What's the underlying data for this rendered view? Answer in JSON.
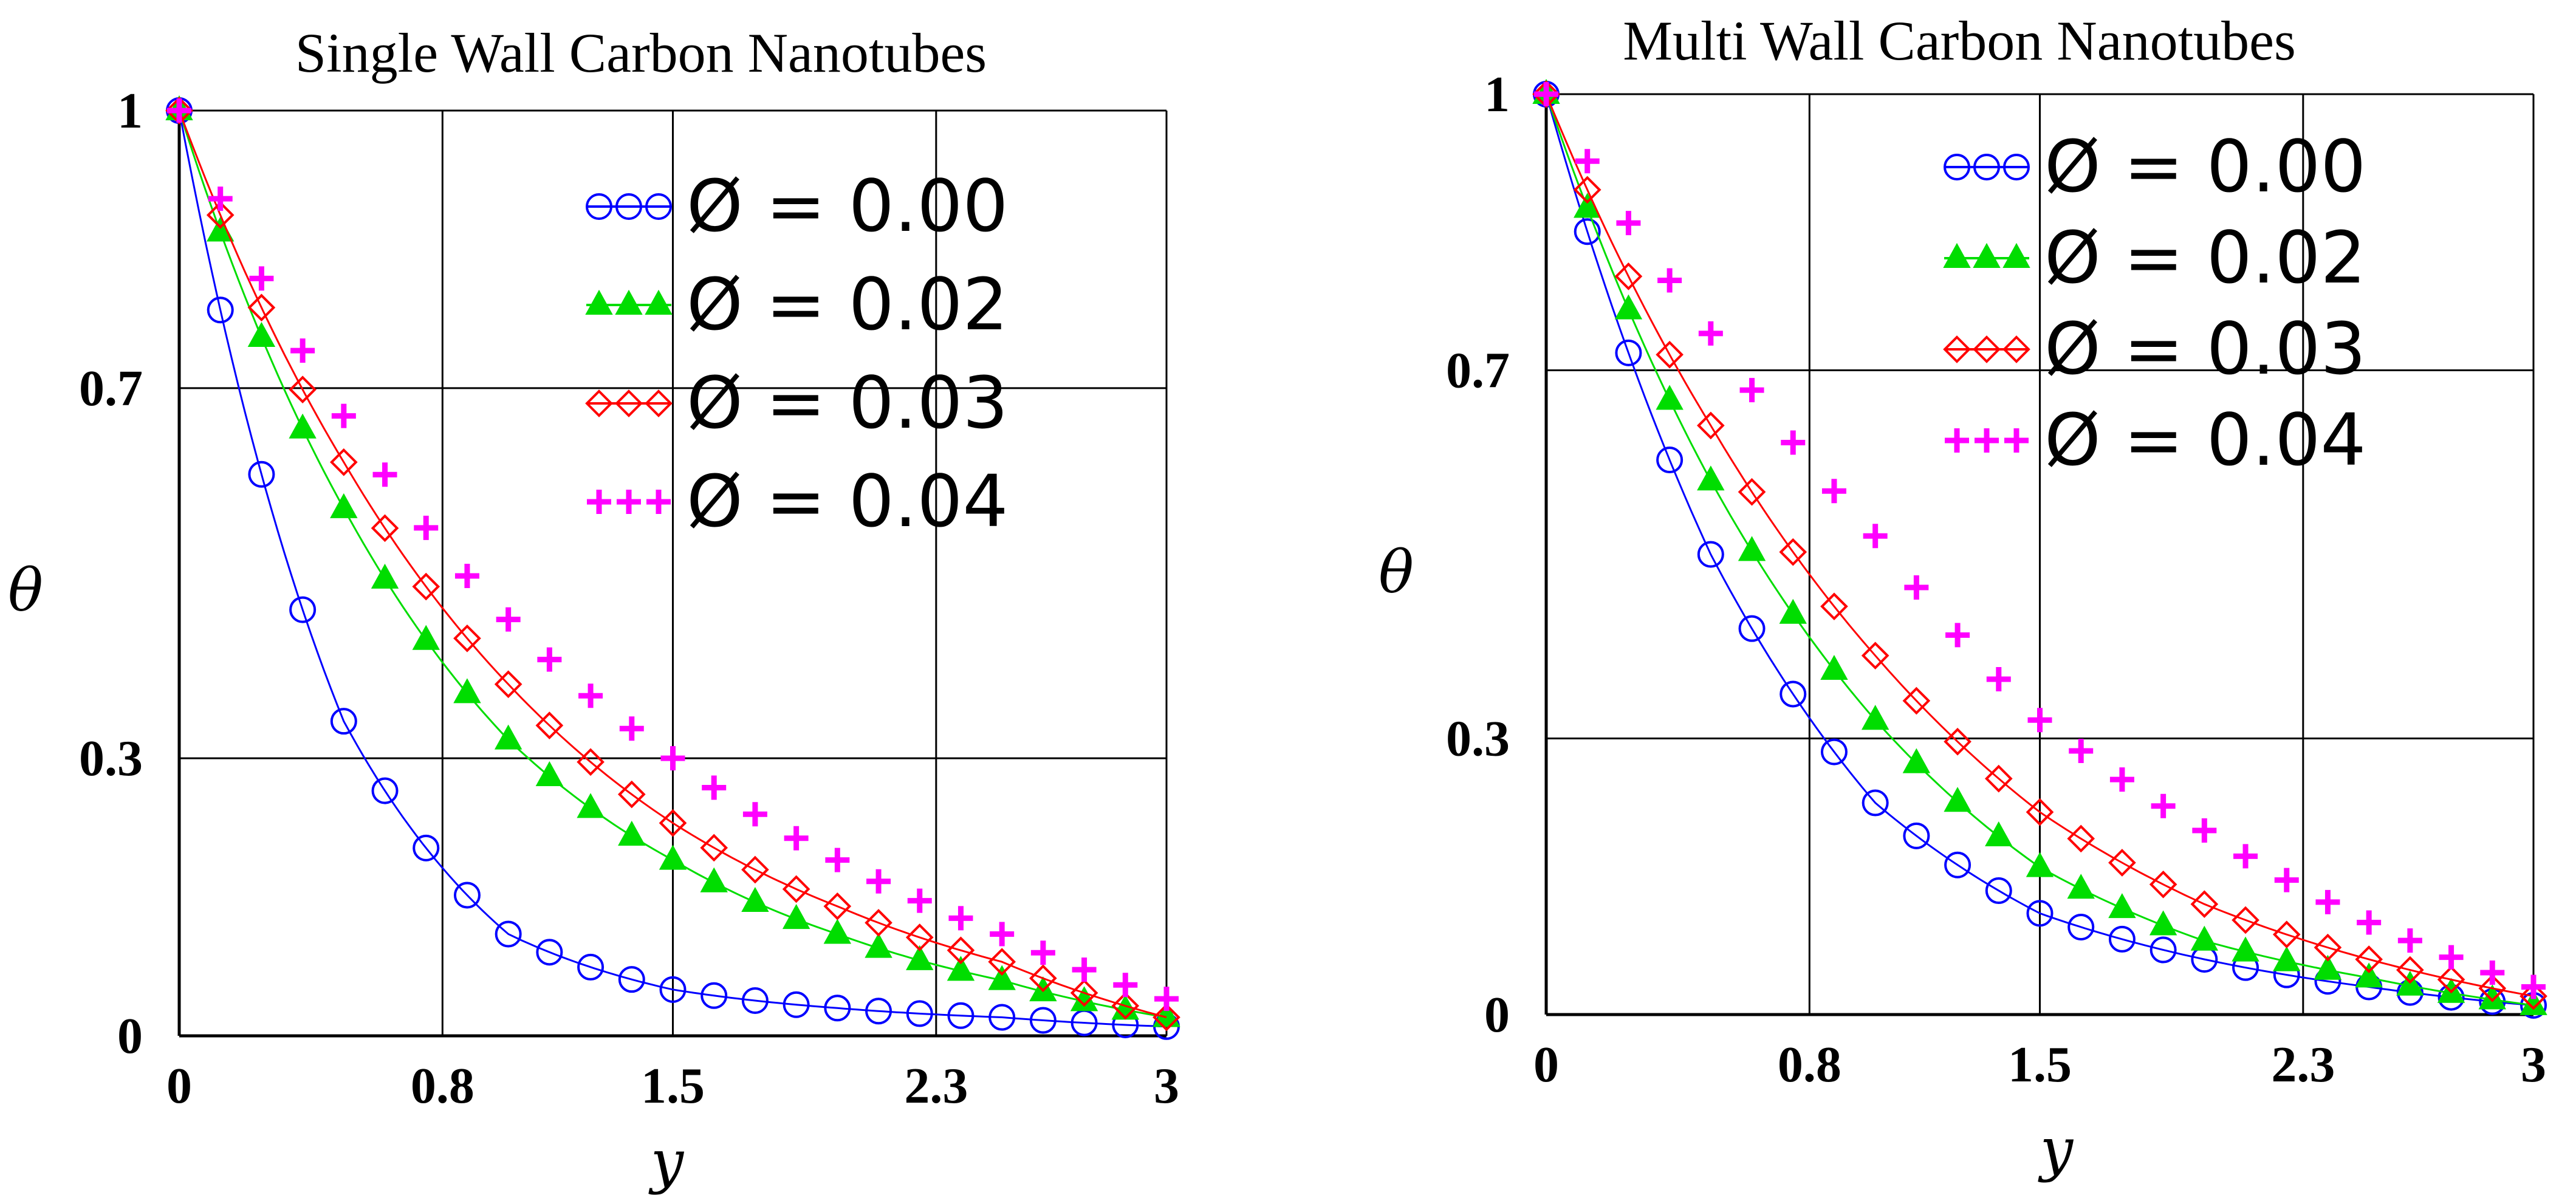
{
  "figure": {
    "background": "#ffffff"
  },
  "chart_data": [
    {
      "type": "line",
      "title": "Single Wall Carbon Nanotubes",
      "xlabel": "y",
      "ylabel": "θ",
      "xlim": [
        0,
        3
      ],
      "ylim": [
        0,
        1
      ],
      "xticks": [
        0,
        0.8,
        1.5,
        2.3,
        3
      ],
      "xtick_labels": [
        "0",
        "0.8",
        "1.5",
        "2.3",
        "3"
      ],
      "yticks": [
        0,
        0.3,
        0.7,
        1
      ],
      "ytick_labels": [
        "0",
        "0.3",
        "0.7",
        "1"
      ],
      "grid": true,
      "legend_position": "top-right",
      "series": [
        {
          "name": "Ø = 0.00",
          "color": "#0000ff",
          "marker": "circle",
          "decay": 1.55,
          "x": [
            0,
            0.5,
            1.0,
            1.5,
            2.0,
            2.5,
            3.0
          ],
          "values": [
            1.0,
            0.34,
            0.11,
            0.05,
            0.03,
            0.02,
            0.01
          ]
        },
        {
          "name": "Ø = 0.02",
          "color": "#00dd00",
          "marker": "triangle",
          "decay": 1.12,
          "x": [
            0,
            0.5,
            1.0,
            1.5,
            2.0,
            2.5,
            3.0
          ],
          "values": [
            1.0,
            0.57,
            0.32,
            0.19,
            0.11,
            0.06,
            0.02
          ]
        },
        {
          "name": "Ø = 0.03",
          "color": "#ff0000",
          "marker": "diamond",
          "decay": 0.97,
          "x": [
            0,
            0.5,
            1.0,
            1.5,
            2.0,
            2.5,
            3.0
          ],
          "values": [
            1.0,
            0.62,
            0.38,
            0.23,
            0.14,
            0.08,
            0.02
          ]
        },
        {
          "name": "Ø = 0.04",
          "color": "#ff00ff",
          "marker": "plus",
          "decay": 0.8,
          "x": [
            0,
            0.5,
            1.0,
            1.5,
            2.0,
            2.5,
            3.0
          ],
          "values": [
            1.0,
            0.67,
            0.45,
            0.3,
            0.19,
            0.11,
            0.04
          ]
        }
      ]
    },
    {
      "type": "line",
      "title": "Multi Wall Carbon Nanotubes",
      "xlabel": "y",
      "ylabel": "θ",
      "xlim": [
        0,
        3
      ],
      "ylim": [
        0,
        1
      ],
      "xticks": [
        0,
        0.8,
        1.5,
        2.3,
        3
      ],
      "xtick_labels": [
        "0",
        "0.8",
        "1.5",
        "2.3",
        "3"
      ],
      "yticks": [
        0,
        0.3,
        0.7,
        1
      ],
      "ytick_labels": [
        "0",
        "0.3",
        "0.7",
        "1"
      ],
      "grid": true,
      "legend_position": "top-right",
      "series": [
        {
          "name": "Ø = 0.00",
          "color": "#0000ff",
          "marker": "circle",
          "decay": 1.0,
          "x": [
            0,
            0.5,
            1.0,
            1.5,
            2.0,
            2.5,
            3.0
          ],
          "values": [
            1.0,
            0.5,
            0.23,
            0.11,
            0.06,
            0.03,
            0.01
          ]
        },
        {
          "name": "Ø = 0.02",
          "color": "#00dd00",
          "marker": "triangle",
          "decay": 0.92,
          "x": [
            0,
            0.5,
            1.0,
            1.5,
            2.0,
            2.5,
            3.0
          ],
          "values": [
            1.0,
            0.58,
            0.32,
            0.16,
            0.08,
            0.04,
            0.01
          ]
        },
        {
          "name": "Ø = 0.03",
          "color": "#ff0000",
          "marker": "diamond",
          "decay": 0.8,
          "x": [
            0,
            0.5,
            1.0,
            1.5,
            2.0,
            2.5,
            3.0
          ],
          "values": [
            1.0,
            0.64,
            0.39,
            0.22,
            0.12,
            0.06,
            0.02
          ]
        },
        {
          "name": "Ø = 0.04",
          "color": "#ff00ff",
          "marker": "plus",
          "decay": 0.62,
          "x": [
            0,
            0.5,
            1.0,
            1.5,
            2.0,
            2.5,
            3.0
          ],
          "values": [
            1.0,
            0.74,
            0.52,
            0.32,
            0.2,
            0.1,
            0.03
          ]
        }
      ]
    }
  ]
}
